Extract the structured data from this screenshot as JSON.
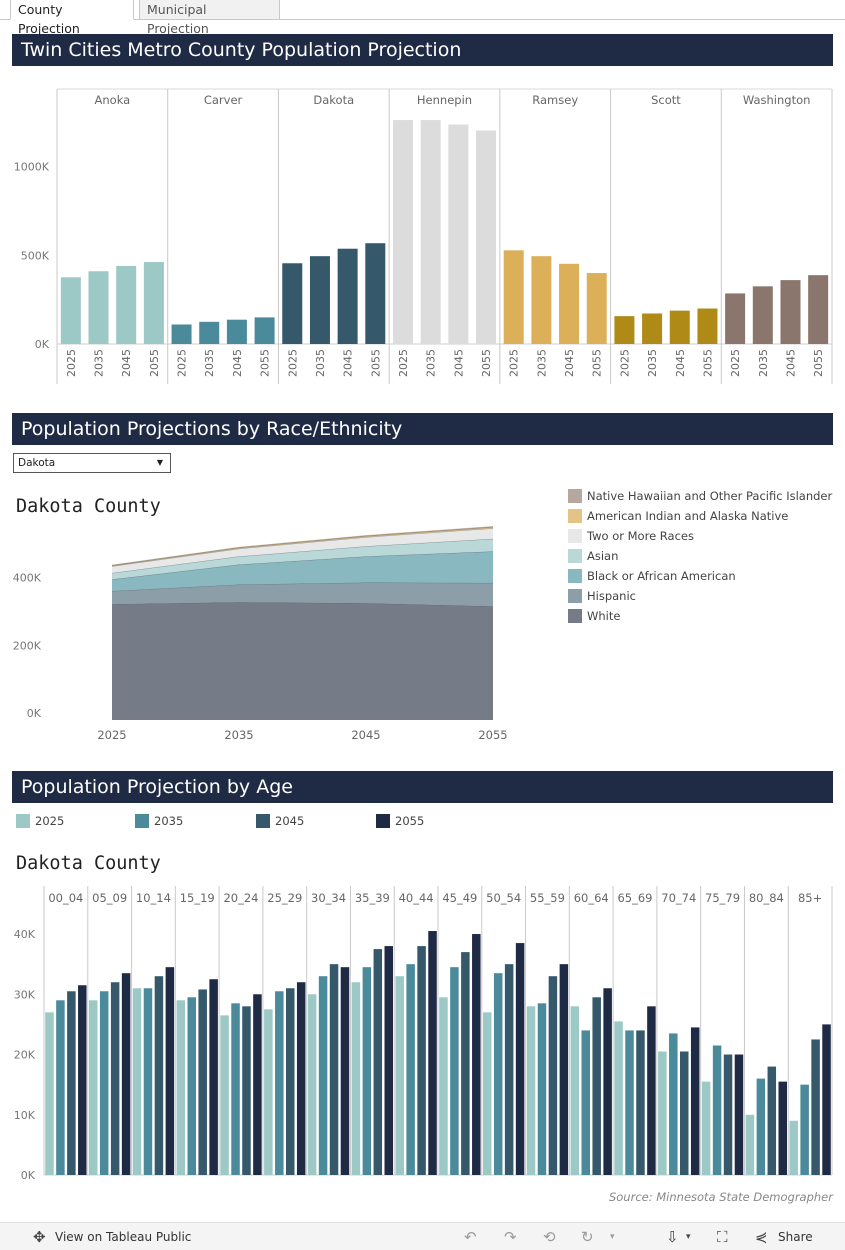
{
  "tabs": [
    {
      "label": "County Projection",
      "active": true
    },
    {
      "label": "Municipal Projection",
      "active": false
    }
  ],
  "sections": {
    "county": "Twin Cities Metro County Population Projection",
    "race": "Population Projections by Race/Ethnicity",
    "age": "Population Projection by Age"
  },
  "county_select": {
    "value": "Dakota"
  },
  "race_chart_title": "Dakota  County",
  "age_chart_title": "Dakota County",
  "source": "Source: Minnesota State Demographer",
  "toolbar": {
    "view_label": "View on Tableau Public",
    "share_label": "Share"
  },
  "chart_data": [
    {
      "type": "bar",
      "title": "Twin Cities Metro County Population Projection",
      "facets": [
        "Anoka",
        "Carver",
        "Dakota",
        "Hennepin",
        "Ramsey",
        "Scott",
        "Washington"
      ],
      "categories": [
        "2025",
        "2035",
        "2045",
        "2055"
      ],
      "colors": [
        "#9cc8c5",
        "#4b8a9a",
        "#35596a",
        "#dcdcdc",
        "#dcb059",
        "#b08a17",
        "#8a766d"
      ],
      "values": [
        [
          376000,
          410000,
          440000,
          462000
        ],
        [
          110000,
          125000,
          137000,
          150000
        ],
        [
          455000,
          495000,
          537000,
          568000
        ],
        [
          1262000,
          1262000,
          1237000,
          1203000
        ],
        [
          528000,
          495000,
          452000,
          400000
        ],
        [
          157000,
          172000,
          188000,
          200000
        ],
        [
          285000,
          325000,
          360000,
          388000
        ]
      ],
      "yticks": [
        "0K",
        "500K",
        "1000K"
      ],
      "ylim": [
        0,
        1330000
      ]
    },
    {
      "type": "area",
      "title": "Dakota  County",
      "x": [
        "2025",
        "2035",
        "2045",
        "2055"
      ],
      "stack_order_bottom_to_top": [
        "White",
        "Hispanic",
        "Black or African American",
        "Asian",
        "Two or More Races",
        "American Indian and Alaska Native",
        "Native Hawaiian and Other Pacific Islander"
      ],
      "series": [
        {
          "name": "White",
          "color": "#757b87",
          "values": [
            342000,
            348000,
            345000,
            336000
          ]
        },
        {
          "name": "Hispanic",
          "color": "#8c9fa8",
          "values": [
            39000,
            52000,
            61000,
            69000
          ]
        },
        {
          "name": "Black or African American",
          "color": "#89b8c0",
          "values": [
            34000,
            59000,
            77000,
            93000
          ]
        },
        {
          "name": "Asian",
          "color": "#b9d8d7",
          "values": [
            19000,
            24000,
            30000,
            37000
          ]
        },
        {
          "name": "Two or More Races",
          "color": "#e8e8e8",
          "values": [
            20000,
            23000,
            27000,
            31000
          ]
        },
        {
          "name": "American Indian and Alaska Native",
          "color": "#e3c486",
          "values": [
            2000,
            2500,
            3000,
            3500
          ]
        },
        {
          "name": "Native Hawaiian and Other Pacific Islander",
          "color": "#b5a89e",
          "values": [
            1000,
            1200,
            1400,
            1600
          ]
        }
      ],
      "legend_order": [
        "Native Hawaiian and Other Pacific Islander",
        "American Indian and Alaska Native",
        "Two or More Races",
        "Asian",
        "Black or African American",
        "Hispanic",
        "White"
      ],
      "yticks": [
        "0K",
        "200K",
        "400K"
      ],
      "xlabel_ticks": [
        "2025",
        "2035",
        "2045",
        "2055"
      ],
      "ylim": [
        0,
        620000
      ]
    },
    {
      "type": "bar",
      "title": "Dakota County",
      "legend": [
        "2025",
        "2035",
        "2045",
        "2055"
      ],
      "series_colors": [
        "#9cc8c5",
        "#4b8a9a",
        "#35596a",
        "#1f2a44"
      ],
      "categories": [
        "00_04",
        "05_09",
        "10_14",
        "15_19",
        "20_24",
        "25_29",
        "30_34",
        "35_39",
        "40_44",
        "45_49",
        "50_54",
        "55_59",
        "60_64",
        "65_69",
        "70_74",
        "75_79",
        "80_84",
        "85+"
      ],
      "values": [
        [
          27000,
          29000,
          30500,
          31500
        ],
        [
          29000,
          30500,
          32000,
          33500
        ],
        [
          31000,
          31000,
          33000,
          34500
        ],
        [
          29000,
          29500,
          30800,
          32500
        ],
        [
          26500,
          28500,
          28000,
          30000
        ],
        [
          27500,
          30500,
          31000,
          32000
        ],
        [
          30000,
          33000,
          35000,
          34500
        ],
        [
          32000,
          34500,
          37500,
          38000
        ],
        [
          33000,
          35000,
          38000,
          40500
        ],
        [
          29500,
          34500,
          37000,
          40000
        ],
        [
          27000,
          33500,
          35000,
          38500
        ],
        [
          28000,
          28500,
          33000,
          35000
        ],
        [
          28000,
          24000,
          29500,
          31000
        ],
        [
          25500,
          24000,
          24000,
          28000
        ],
        [
          20500,
          23500,
          20500,
          24500
        ],
        [
          15500,
          21500,
          20000,
          20000
        ],
        [
          10000,
          16000,
          18000,
          15500
        ],
        [
          9000,
          15000,
          22500,
          25000
        ]
      ],
      "yticks": [
        "0K",
        "10K",
        "20K",
        "30K",
        "40K"
      ],
      "ylim": [
        0,
        41500
      ]
    }
  ]
}
